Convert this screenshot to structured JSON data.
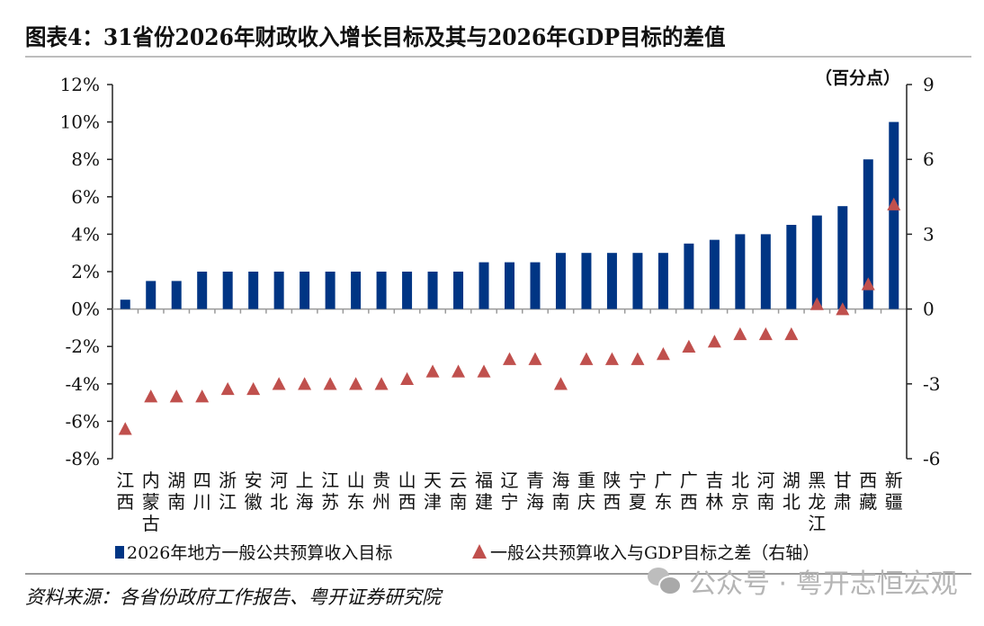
{
  "title": "图表4：31省份2026年财政收入增长目标及其与2026年GDP目标的差值",
  "source": "资料来源：各省份政府工作报告、粤开证券研究院",
  "watermark": {
    "icon": "wechat-icon",
    "text": "公众号 · 粤开志恒宏观"
  },
  "chart_data": {
    "type": "bar",
    "title": "图表4：31省份2026年财政收入增长目标及其与2026年GDP目标的差值",
    "categories": [
      "江西",
      "内蒙古",
      "湖南",
      "四川",
      "浙江",
      "安徽",
      "河北",
      "上海",
      "江苏",
      "山东",
      "贵州",
      "山西",
      "天津",
      "云南",
      "福建",
      "辽宁",
      "青海",
      "海南",
      "重庆",
      "陕西",
      "宁夏",
      "广东",
      "广西",
      "吉林",
      "北京",
      "河南",
      "湖北",
      "黑龙江",
      "甘肃",
      "西藏",
      "新疆"
    ],
    "series": [
      {
        "name": "2026年地方一般公共预算收入目标",
        "type": "bar",
        "axis": "left",
        "unit": "%",
        "color": "#003584",
        "values": [
          0.5,
          1.5,
          1.5,
          2.0,
          2.0,
          2.0,
          2.0,
          2.0,
          2.0,
          2.0,
          2.0,
          2.0,
          2.0,
          2.0,
          2.5,
          2.5,
          2.5,
          3.0,
          3.0,
          3.0,
          3.0,
          3.0,
          3.5,
          3.7,
          4.0,
          4.0,
          4.5,
          5.0,
          5.5,
          8.0,
          10.0
        ]
      },
      {
        "name": "一般公共预算收入与GDP目标之差（右轴）",
        "type": "scatter",
        "marker": "triangle",
        "axis": "right",
        "unit": "百分点",
        "color": "#c0504d",
        "values": [
          -4.8,
          -3.5,
          -3.5,
          -3.5,
          -3.2,
          -3.2,
          -3.0,
          -3.0,
          -3.0,
          -3.0,
          -3.0,
          -2.8,
          -2.5,
          -2.5,
          -2.5,
          -2.0,
          -2.0,
          -3.0,
          -2.0,
          -2.0,
          -2.0,
          -1.8,
          -1.5,
          -1.3,
          -1.0,
          -1.0,
          -1.0,
          0.2,
          0.0,
          1.0,
          4.2
        ]
      }
    ],
    "left_axis": {
      "ylim": [
        -8,
        12
      ],
      "ticks": [
        12,
        10,
        8,
        6,
        4,
        2,
        0,
        -2,
        -4,
        -6,
        -8
      ],
      "tick_labels": [
        "12%",
        "10%",
        "8%",
        "6%",
        "4%",
        "2%",
        "0%",
        "-2%",
        "-4%",
        "-6%",
        "-8%"
      ]
    },
    "right_axis": {
      "label": "（百分点）",
      "ylim": [
        -6,
        9
      ],
      "ticks": [
        9,
        6,
        3,
        0,
        -3,
        -6
      ],
      "tick_labels": [
        "9",
        "6",
        "3",
        "0",
        "-3",
        "-6"
      ]
    },
    "xlabel": "",
    "grid": false,
    "legend": {
      "position": "bottom",
      "items": [
        "2026年地方一般公共预算收入目标",
        "一般公共预算收入与GDP目标之差（右轴）"
      ]
    }
  }
}
